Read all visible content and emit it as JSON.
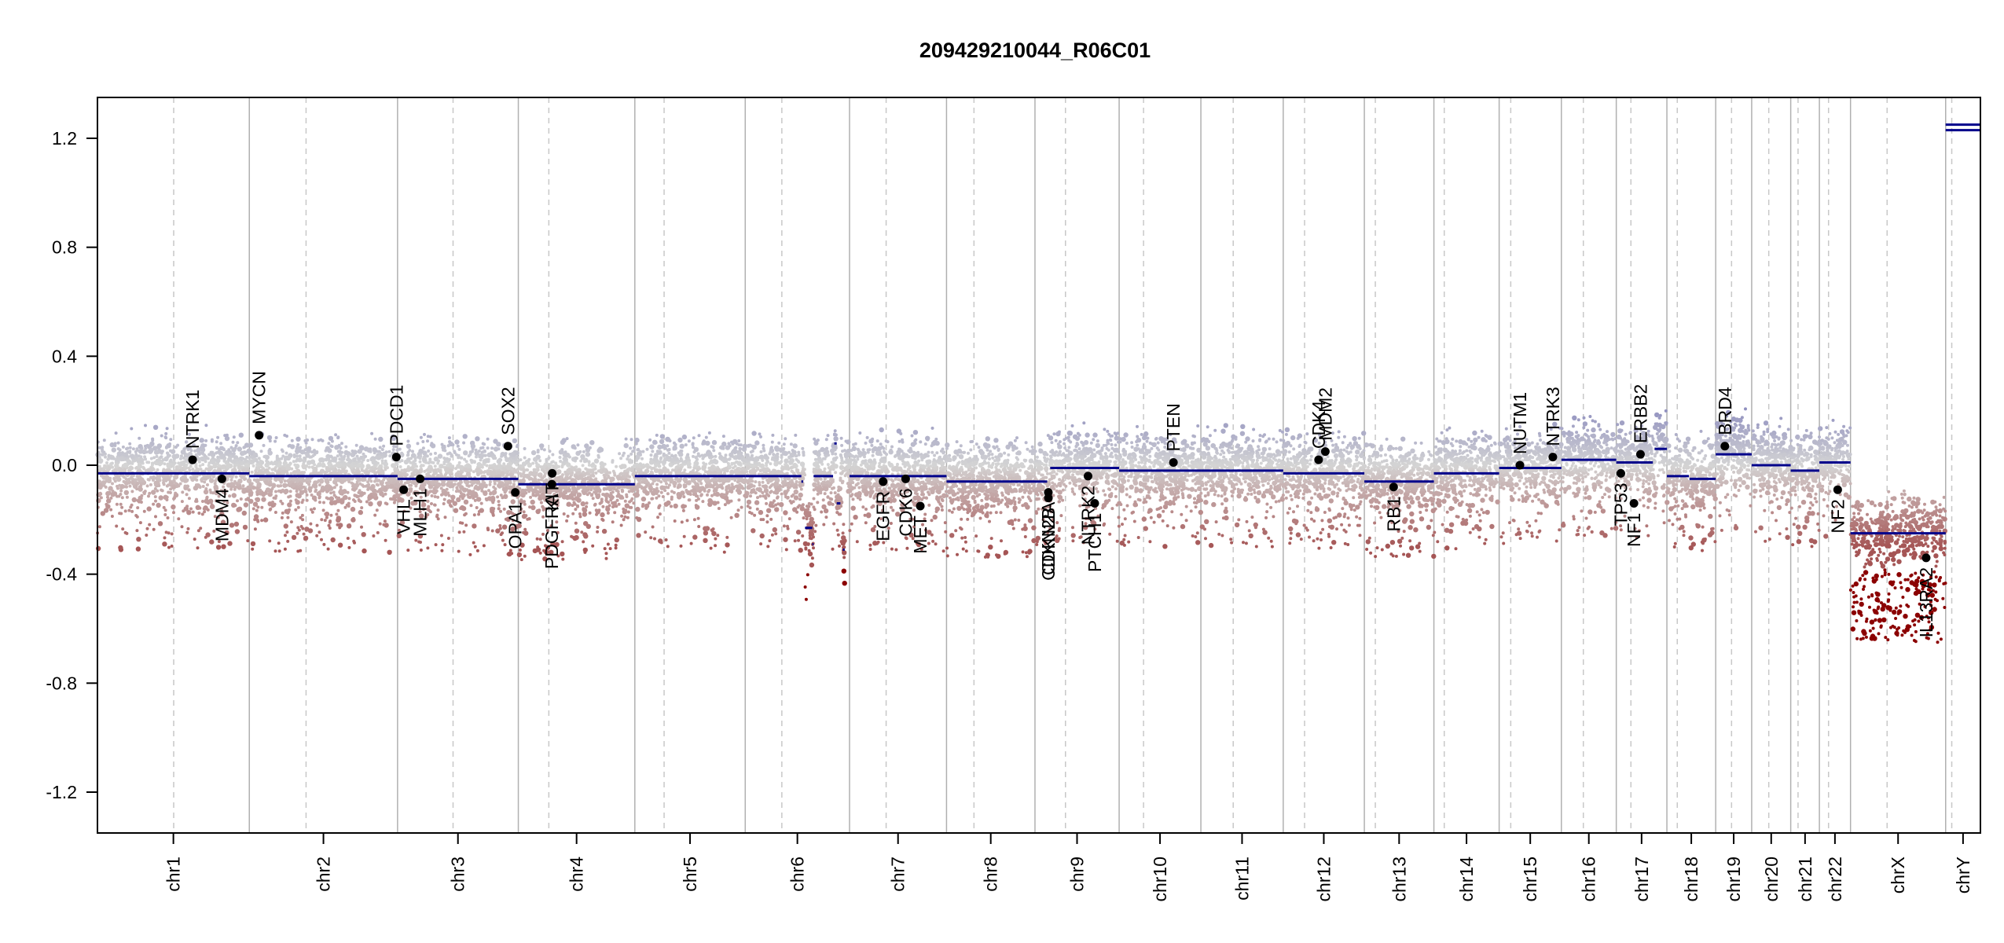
{
  "chart_data": {
    "type": "scatter",
    "title": "209429210044_R06C01",
    "xlabel": "",
    "ylabel": "",
    "ylim": [
      -1.35,
      1.35
    ],
    "yticks": [
      "1.2",
      "0.8",
      "0.4",
      "0.0",
      "-0.4",
      "-0.8",
      "-1.2"
    ],
    "grid": "vertical chromosome boundaries (solid) and centromeres (dashed)",
    "colors": {
      "gain": "#8f8fc0",
      "neutral": "#d3d3d3",
      "loss": "#a05050",
      "deep_loss": "#8b0000",
      "segment": "#00008b",
      "gene_point": "#000000",
      "boundary": "#b0b0b0",
      "centromere": "#c8c8c8"
    },
    "chromosomes": [
      {
        "name": "chr1",
        "size": 249,
        "centromere": 125,
        "seed": 1
      },
      {
        "name": "chr2",
        "size": 243,
        "centromere": 93,
        "seed": 2
      },
      {
        "name": "chr3",
        "size": 198,
        "centromere": 91,
        "seed": 3
      },
      {
        "name": "chr4",
        "size": 191,
        "centromere": 50,
        "seed": 4
      },
      {
        "name": "chr5",
        "size": 181,
        "centromere": 48,
        "seed": 5
      },
      {
        "name": "chr6",
        "size": 171,
        "centromere": 60,
        "seed": 6
      },
      {
        "name": "chr7",
        "size": 159,
        "centromere": 60,
        "seed": 7
      },
      {
        "name": "chr8",
        "size": 145,
        "centromere": 45,
        "seed": 8
      },
      {
        "name": "chr9",
        "size": 138,
        "centromere": 50,
        "seed": 9
      },
      {
        "name": "chr10",
        "size": 134,
        "centromere": 40,
        "seed": 10
      },
      {
        "name": "chr11",
        "size": 135,
        "centromere": 53,
        "seed": 11
      },
      {
        "name": "chr12",
        "size": 133,
        "centromere": 35,
        "seed": 12
      },
      {
        "name": "chr13",
        "size": 114,
        "centromere": 18,
        "seed": 13
      },
      {
        "name": "chr14",
        "size": 107,
        "centromere": 17,
        "seed": 14
      },
      {
        "name": "chr15",
        "size": 102,
        "centromere": 19,
        "seed": 15
      },
      {
        "name": "chr16",
        "size": 90,
        "centromere": 36,
        "seed": 16
      },
      {
        "name": "chr17",
        "size": 83,
        "centromere": 24,
        "seed": 17
      },
      {
        "name": "chr18",
        "size": 80,
        "centromere": 17,
        "seed": 18
      },
      {
        "name": "chr19",
        "size": 59,
        "centromere": 26,
        "seed": 19
      },
      {
        "name": "chr20",
        "size": 64,
        "centromere": 28,
        "seed": 20
      },
      {
        "name": "chr21",
        "size": 47,
        "centromere": 12,
        "seed": 21
      },
      {
        "name": "chr22",
        "size": 51,
        "centromere": 15,
        "seed": 22
      },
      {
        "name": "chrX",
        "size": 156,
        "centromere": 60,
        "seed": 23
      },
      {
        "name": "chrY",
        "size": 57,
        "centromere": 10,
        "seed": 24
      }
    ],
    "segments": [
      {
        "chr": "chr1",
        "start": 0,
        "end": 249,
        "value": -0.03
      },
      {
        "chr": "chr2",
        "start": 0,
        "end": 243,
        "value": -0.04
      },
      {
        "chr": "chr3",
        "start": 0,
        "end": 198,
        "value": -0.05
      },
      {
        "chr": "chr4",
        "start": 0,
        "end": 191,
        "value": -0.07
      },
      {
        "chr": "chr5",
        "start": 0,
        "end": 181,
        "value": -0.04
      },
      {
        "chr": "chr6",
        "start": 0,
        "end": 92,
        "value": -0.04
      },
      {
        "chr": "chr6",
        "start": 92,
        "end": 95,
        "value": -0.06
      },
      {
        "chr": "chr6",
        "start": 98,
        "end": 110,
        "value": -0.23
      },
      {
        "chr": "chr6",
        "start": 110,
        "end": 112,
        "value": -0.29
      },
      {
        "chr": "chr6",
        "start": 112,
        "end": 144,
        "value": -0.04
      },
      {
        "chr": "chr6",
        "start": 146,
        "end": 150,
        "value": 0.08
      },
      {
        "chr": "chr6",
        "start": 150,
        "end": 156,
        "value": -0.14
      },
      {
        "chr": "chr6",
        "start": 160,
        "end": 163,
        "value": -0.31
      },
      {
        "chr": "chr7",
        "start": 0,
        "end": 159,
        "value": -0.04
      },
      {
        "chr": "chr8",
        "start": 0,
        "end": 145,
        "value": -0.06
      },
      {
        "chr": "chr9",
        "start": 0,
        "end": 20,
        "value": -0.06
      },
      {
        "chr": "chr9",
        "start": 22,
        "end": 25,
        "value": -0.1
      },
      {
        "chr": "chr9",
        "start": 25,
        "end": 138,
        "value": -0.01
      },
      {
        "chr": "chr10",
        "start": 0,
        "end": 134,
        "value": -0.02
      },
      {
        "chr": "chr11",
        "start": 0,
        "end": 135,
        "value": -0.02
      },
      {
        "chr": "chr12",
        "start": 0,
        "end": 133,
        "value": -0.03
      },
      {
        "chr": "chr13",
        "start": 0,
        "end": 114,
        "value": -0.06
      },
      {
        "chr": "chr14",
        "start": 0,
        "end": 107,
        "value": -0.03
      },
      {
        "chr": "chr15",
        "start": 0,
        "end": 102,
        "value": -0.01
      },
      {
        "chr": "chr16",
        "start": 0,
        "end": 90,
        "value": 0.02
      },
      {
        "chr": "chr17",
        "start": 0,
        "end": 60,
        "value": 0.01
      },
      {
        "chr": "chr17",
        "start": 63,
        "end": 83,
        "value": 0.06
      },
      {
        "chr": "chr18",
        "start": 0,
        "end": 36,
        "value": -0.04
      },
      {
        "chr": "chr18",
        "start": 37,
        "end": 80,
        "value": -0.05
      },
      {
        "chr": "chr19",
        "start": 0,
        "end": 59,
        "value": 0.04
      },
      {
        "chr": "chr20",
        "start": 0,
        "end": 64,
        "value": 0.0
      },
      {
        "chr": "chr21",
        "start": 0,
        "end": 47,
        "value": -0.02
      },
      {
        "chr": "chr22",
        "start": 0,
        "end": 51,
        "value": 0.01
      },
      {
        "chr": "chrX",
        "start": 0,
        "end": 156,
        "value": -0.25
      },
      {
        "chr": "chrY",
        "start": 0,
        "end": 57,
        "value": 1.23
      },
      {
        "chr": "chrY",
        "start": 0,
        "end": 57,
        "value": 1.25
      }
    ],
    "genes": [
      {
        "name": "NTRK1",
        "chr": "chr1",
        "pos": 156,
        "value": 0.02,
        "label_side": "above"
      },
      {
        "name": "MDM4",
        "chr": "chr1",
        "pos": 204,
        "value": -0.05,
        "label_side": "below"
      },
      {
        "name": "MYCN",
        "chr": "chr2",
        "pos": 16,
        "value": 0.11,
        "label_side": "above"
      },
      {
        "name": "PDCD1",
        "chr": "chr2",
        "pos": 241,
        "value": 0.03,
        "label_side": "above"
      },
      {
        "name": "VHL",
        "chr": "chr3",
        "pos": 10,
        "value": -0.09,
        "label_side": "below"
      },
      {
        "name": "MLH1",
        "chr": "chr3",
        "pos": 37,
        "value": -0.05,
        "label_side": "below"
      },
      {
        "name": "SOX2",
        "chr": "chr3",
        "pos": 181,
        "value": 0.07,
        "label_side": "above"
      },
      {
        "name": "OPA1",
        "chr": "chr3",
        "pos": 193,
        "value": -0.1,
        "label_side": "below"
      },
      {
        "name": "PDGFRA",
        "chr": "chr4",
        "pos": 55,
        "value": -0.07,
        "label_side": "below"
      },
      {
        "name": "KIT",
        "chr": "chr4",
        "pos": 55.5,
        "value": -0.03,
        "label_side": "below"
      },
      {
        "name": "EGFR",
        "chr": "chr7",
        "pos": 55,
        "value": -0.06,
        "label_side": "below"
      },
      {
        "name": "CDK6",
        "chr": "chr7",
        "pos": 92,
        "value": -0.05,
        "label_side": "below"
      },
      {
        "name": "MET",
        "chr": "chr7",
        "pos": 116,
        "value": -0.15,
        "label_side": "below"
      },
      {
        "name": "CDKN2A",
        "chr": "chr9",
        "pos": 21.9,
        "value": -0.1,
        "label_side": "below"
      },
      {
        "name": "CDKN2B",
        "chr": "chr9",
        "pos": 22,
        "value": -0.12,
        "label_side": "below"
      },
      {
        "name": "PTCH1",
        "chr": "chr9",
        "pos": 98,
        "value": -0.14,
        "label_side": "below"
      },
      {
        "name": "NTRK2",
        "chr": "chr9",
        "pos": 87,
        "value": -0.04,
        "label_side": "below"
      },
      {
        "name": "PTEN",
        "chr": "chr10",
        "pos": 89,
        "value": 0.01,
        "label_side": "above"
      },
      {
        "name": "CDK4",
        "chr": "chr12",
        "pos": 58,
        "value": 0.02,
        "label_side": "above"
      },
      {
        "name": "MDM2",
        "chr": "chr12",
        "pos": 69,
        "value": 0.05,
        "label_side": "above"
      },
      {
        "name": "RB1",
        "chr": "chr13",
        "pos": 48,
        "value": -0.08,
        "label_side": "below"
      },
      {
        "name": "NUTM1",
        "chr": "chr15",
        "pos": 34,
        "value": 0.0,
        "label_side": "above"
      },
      {
        "name": "NTRK3",
        "chr": "chr15",
        "pos": 88,
        "value": 0.03,
        "label_side": "above"
      },
      {
        "name": "TP53",
        "chr": "chr17",
        "pos": 7.5,
        "value": -0.03,
        "label_side": "below"
      },
      {
        "name": "NF1",
        "chr": "chr17",
        "pos": 29,
        "value": -0.14,
        "label_side": "below"
      },
      {
        "name": "ERBB2",
        "chr": "chr17",
        "pos": 39.7,
        "value": 0.04,
        "label_side": "above"
      },
      {
        "name": "BRD4",
        "chr": "chr19",
        "pos": 15,
        "value": 0.07,
        "label_side": "above"
      },
      {
        "name": "NF2",
        "chr": "chr22",
        "pos": 30,
        "value": -0.09,
        "label_side": "below"
      },
      {
        "name": "IL13RA2",
        "chr": "chrX",
        "pos": 124,
        "value": -0.34,
        "label_side": "below"
      }
    ]
  }
}
